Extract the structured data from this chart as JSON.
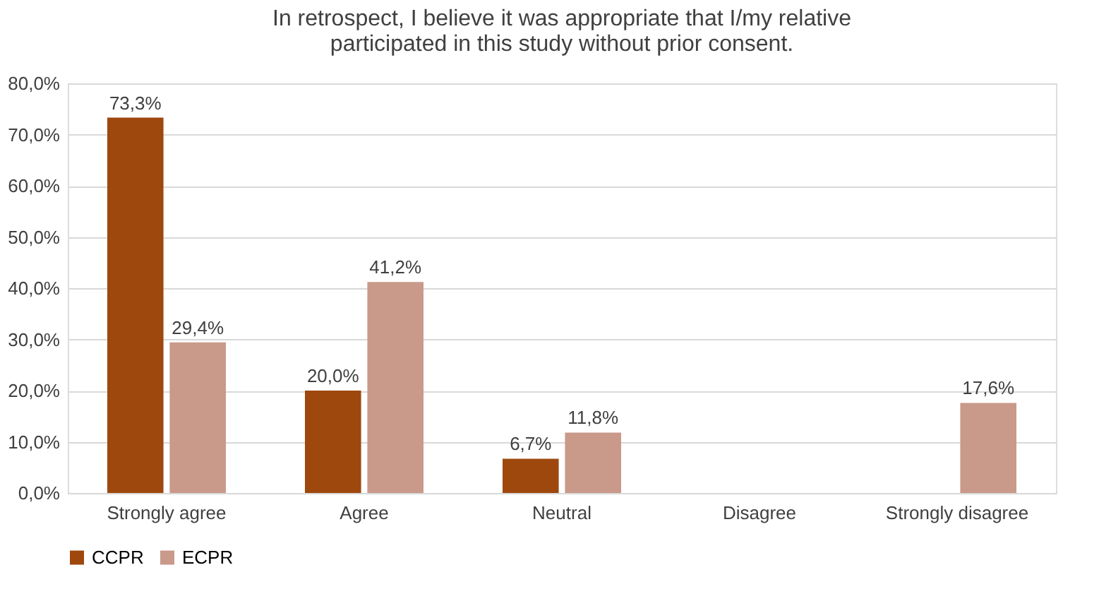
{
  "chart_data": {
    "type": "bar",
    "title": "In retrospect, I believe it was appropriate that I/my relative\nparticipated in this study without prior consent.",
    "categories": [
      "Strongly agree",
      "Agree",
      "Neutral",
      "Disagree",
      "Strongly disagree"
    ],
    "series": [
      {
        "name": "CCPR",
        "color": "#9e480e",
        "values": [
          73.3,
          20.0,
          6.7,
          null,
          null
        ],
        "value_labels": [
          "73,3%",
          "20,0%",
          "6,7%",
          null,
          null
        ]
      },
      {
        "name": "ECPR",
        "color": "#c9998a",
        "values": [
          29.4,
          41.2,
          11.8,
          null,
          17.6
        ],
        "value_labels": [
          "29,4%",
          "41,2%",
          "11,8%",
          null,
          "17,6%"
        ]
      }
    ],
    "ylim": [
      0,
      80
    ],
    "yticks": [
      {
        "value": 0,
        "label": "0,0%"
      },
      {
        "value": 10,
        "label": "10,0%"
      },
      {
        "value": 20,
        "label": "20,0%"
      },
      {
        "value": 30,
        "label": "30,0%"
      },
      {
        "value": 40,
        "label": "40,0%"
      },
      {
        "value": 50,
        "label": "50,0%"
      },
      {
        "value": 60,
        "label": "60,0%"
      },
      {
        "value": 70,
        "label": "70,0%"
      },
      {
        "value": 80,
        "label": "80,0%"
      }
    ],
    "grid": "y",
    "legend": "bottom"
  }
}
